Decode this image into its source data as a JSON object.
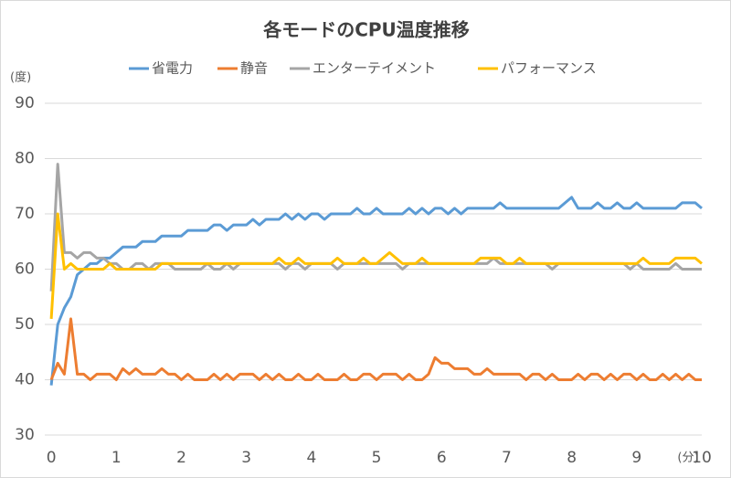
{
  "chart_data": {
    "type": "line",
    "title": "各モードのCPU温度推移",
    "y_label": "(度)",
    "x_label": "(分)",
    "x": [
      0,
      0.1,
      0.2,
      0.3,
      0.4,
      0.5,
      0.6,
      0.7,
      0.8,
      0.9,
      1,
      1.1,
      1.2,
      1.3,
      1.4,
      1.5,
      1.6,
      1.7,
      1.8,
      1.9,
      2,
      2.1,
      2.2,
      2.3,
      2.4,
      2.5,
      2.6,
      2.7,
      2.8,
      2.9,
      3,
      3.1,
      3.2,
      3.3,
      3.4,
      3.5,
      3.6,
      3.7,
      3.8,
      3.9,
      4,
      4.1,
      4.2,
      4.3,
      4.4,
      4.5,
      4.6,
      4.7,
      4.8,
      4.9,
      5,
      5.1,
      5.2,
      5.3,
      5.4,
      5.5,
      5.6,
      5.7,
      5.8,
      5.9,
      6,
      6.1,
      6.2,
      6.3,
      6.4,
      6.5,
      6.6,
      6.7,
      6.8,
      6.9,
      7,
      7.1,
      7.2,
      7.3,
      7.4,
      7.5,
      7.6,
      7.7,
      7.8,
      7.9,
      8,
      8.1,
      8.2,
      8.3,
      8.4,
      8.5,
      8.6,
      8.7,
      8.8,
      8.9,
      9,
      9.1,
      9.2,
      9.3,
      9.4,
      9.5,
      9.6,
      9.7,
      9.8,
      9.9,
      10
    ],
    "series": [
      {
        "name": "省電力",
        "color": "#5b9bd5",
        "values": [
          39,
          50,
          53,
          55,
          59,
          60,
          61,
          61,
          62,
          62,
          63,
          64,
          64,
          64,
          65,
          65,
          65,
          66,
          66,
          66,
          66,
          67,
          67,
          67,
          67,
          68,
          68,
          67,
          68,
          68,
          68,
          69,
          68,
          69,
          69,
          69,
          70,
          69,
          70,
          69,
          70,
          70,
          69,
          70,
          70,
          70,
          70,
          71,
          70,
          70,
          71,
          70,
          70,
          70,
          70,
          71,
          70,
          71,
          70,
          71,
          71,
          70,
          71,
          70,
          71,
          71,
          71,
          71,
          71,
          72,
          71,
          71,
          71,
          71,
          71,
          71,
          71,
          71,
          71,
          72,
          73,
          71,
          71,
          71,
          72,
          71,
          71,
          72,
          71,
          71,
          72,
          71,
          71,
          71,
          71,
          71,
          71,
          72,
          72,
          72,
          71
        ]
      },
      {
        "name": "静音",
        "color": "#ed7d31",
        "values": [
          40,
          43,
          41,
          51,
          41,
          41,
          40,
          41,
          41,
          41,
          40,
          42,
          41,
          42,
          41,
          41,
          41,
          42,
          41,
          41,
          40,
          41,
          40,
          40,
          40,
          41,
          40,
          41,
          40,
          41,
          41,
          41,
          40,
          41,
          40,
          41,
          40,
          40,
          41,
          40,
          40,
          41,
          40,
          40,
          40,
          41,
          40,
          40,
          41,
          41,
          40,
          41,
          41,
          41,
          40,
          41,
          40,
          40,
          41,
          44,
          43,
          43,
          42,
          42,
          42,
          41,
          41,
          42,
          41,
          41,
          41,
          41,
          41,
          40,
          41,
          41,
          40,
          41,
          40,
          40,
          40,
          41,
          40,
          41,
          41,
          40,
          41,
          40,
          41,
          41,
          40,
          41,
          40,
          40,
          41,
          40,
          41,
          40,
          41,
          40,
          40
        ]
      },
      {
        "name": "エンターテイメント",
        "color": "#a5a5a5",
        "values": [
          56,
          79,
          63,
          63,
          62,
          63,
          63,
          62,
          62,
          61,
          61,
          60,
          60,
          61,
          61,
          60,
          61,
          61,
          61,
          60,
          60,
          60,
          60,
          60,
          61,
          60,
          60,
          61,
          60,
          61,
          61,
          61,
          61,
          61,
          61,
          61,
          60,
          61,
          61,
          60,
          61,
          61,
          61,
          61,
          60,
          61,
          61,
          61,
          61,
          61,
          61,
          61,
          61,
          61,
          60,
          61,
          61,
          61,
          61,
          61,
          61,
          61,
          61,
          61,
          61,
          61,
          61,
          61,
          62,
          61,
          61,
          61,
          61,
          61,
          61,
          61,
          61,
          60,
          61,
          61,
          61,
          61,
          61,
          61,
          61,
          61,
          61,
          61,
          61,
          60,
          61,
          60,
          60,
          60,
          60,
          60,
          61,
          60,
          60,
          60,
          60
        ]
      },
      {
        "name": "パフォーマンス",
        "color": "#ffc000",
        "values": [
          51,
          70,
          60,
          61,
          60,
          60,
          60,
          60,
          60,
          61,
          60,
          60,
          60,
          60,
          60,
          60,
          60,
          61,
          61,
          61,
          61,
          61,
          61,
          61,
          61,
          61,
          61,
          61,
          61,
          61,
          61,
          61,
          61,
          61,
          61,
          62,
          61,
          61,
          62,
          61,
          61,
          61,
          61,
          61,
          62,
          61,
          61,
          61,
          62,
          61,
          61,
          62,
          63,
          62,
          61,
          61,
          61,
          62,
          61,
          61,
          61,
          61,
          61,
          61,
          61,
          61,
          62,
          62,
          62,
          62,
          61,
          61,
          62,
          61,
          61,
          61,
          61,
          61,
          61,
          61,
          61,
          61,
          61,
          61,
          61,
          61,
          61,
          61,
          61,
          61,
          61,
          62,
          61,
          61,
          61,
          61,
          62,
          62,
          62,
          62,
          61
        ]
      }
    ],
    "xlim": [
      -0.1,
      10
    ],
    "xticks": [
      0,
      1,
      2,
      3,
      4,
      5,
      6,
      7,
      8,
      9,
      10
    ],
    "ylim": [
      30,
      90
    ],
    "yticks": [
      30,
      40,
      50,
      60,
      70,
      80,
      90
    ],
    "grid": true
  }
}
